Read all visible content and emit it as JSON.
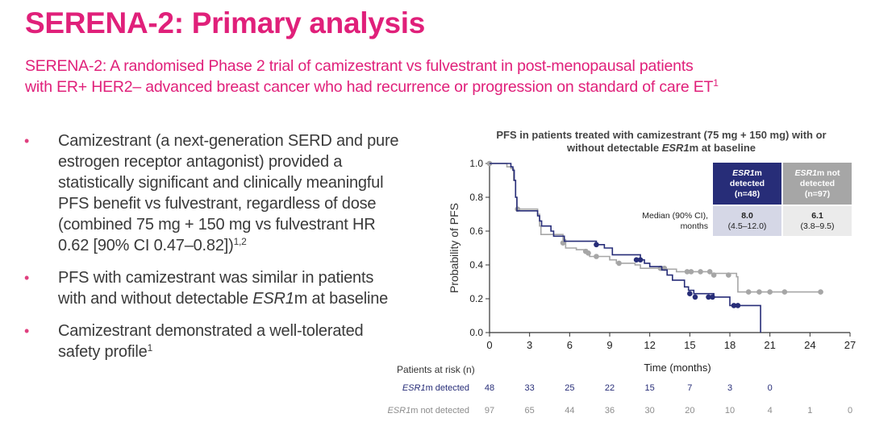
{
  "header": {
    "title": "SERENA-2: Primary analysis",
    "subtitle_line1": "SERENA-2: A randomised Phase 2 trial of camizestrant vs fulvestrant in post-menopausal patients",
    "subtitle_line2": "with ER+ HER2– advanced breast cancer who had recurrence or progression on standard of care ET",
    "subtitle_sup": "1"
  },
  "bullets": [
    {
      "text": "Camizestrant (a next-generation SERD and pure estrogen receptor antagonist) provided a statistically significant and clinically meaningful PFS benefit vs fulvestrant, regardless of dose (combined 75 mg + 150 mg vs fulvestrant HR 0.62 [90% CI 0.47–0.82])",
      "sup": "1,2"
    },
    {
      "text_pre": "PFS with camizestrant was similar in patients with and without detectable ",
      "text_italic": "ESR1",
      "text_post": "m at baseline"
    },
    {
      "text": "Camizestrant demonstrated a well-tolerated safety profile",
      "sup": "1"
    }
  ],
  "legend_table": {
    "median_label_line1": "Median (90% CI),",
    "median_label_line2": "months",
    "groups": [
      {
        "name_italic": "ESR1",
        "name_rest": "m",
        "line2": "detected",
        "n": "(n=48)",
        "median": "8.0",
        "ci": "(4.5–12.0)",
        "color": "#272d78"
      },
      {
        "name_italic": "ESR1",
        "name_rest": "m not",
        "line2": "detected",
        "n": "(n=97)",
        "median": "6.1",
        "ci": "(3.8–9.5)",
        "color": "#a6a6a6"
      }
    ]
  },
  "risk_table": {
    "title": "Patients at risk (n)",
    "rows": [
      {
        "label_italic": "ESR1",
        "label_rest": "m detected",
        "values": [
          "48",
          "33",
          "25",
          "22",
          "15",
          "7",
          "3",
          "0"
        ],
        "color": "#272d78"
      },
      {
        "label_italic": "ESR1",
        "label_rest": "m not detected",
        "values": [
          "97",
          "65",
          "44",
          "36",
          "30",
          "20",
          "10",
          "4",
          "1",
          "0"
        ],
        "color": "#8c8c8c"
      }
    ]
  },
  "chart_data": {
    "type": "line",
    "subtype": "kaplan-meier step",
    "title_line1": "PFS in patients treated with camizestrant (75 mg + 150 mg) with or",
    "title_line2_pre": "without detectable ",
    "title_line2_italic": "ESR1",
    "title_line2_post": "m at baseline",
    "xlabel": "Time (months)",
    "ylabel": "Probability of PFS",
    "xlim": [
      0,
      27
    ],
    "ylim": [
      0,
      1.0
    ],
    "xticks": [
      "0",
      "3",
      "6",
      "9",
      "12",
      "15",
      "18",
      "21",
      "24",
      "27"
    ],
    "yticks": [
      "0.0",
      "0.2",
      "0.4",
      "0.6",
      "0.8",
      "1.0"
    ],
    "grid": false,
    "series": [
      {
        "name": "ESR1m detected",
        "color": "#272d78",
        "steps": [
          [
            0,
            1.0
          ],
          [
            1.6,
            0.98
          ],
          [
            1.75,
            0.96
          ],
          [
            1.85,
            0.9
          ],
          [
            1.95,
            0.8
          ],
          [
            2.05,
            0.72
          ],
          [
            3.6,
            0.69
          ],
          [
            3.75,
            0.66
          ],
          [
            3.9,
            0.63
          ],
          [
            4.6,
            0.6
          ],
          [
            4.8,
            0.57
          ],
          [
            5.6,
            0.54
          ],
          [
            8.0,
            0.52
          ],
          [
            8.6,
            0.5
          ],
          [
            9.2,
            0.46
          ],
          [
            11.3,
            0.43
          ],
          [
            11.6,
            0.41
          ],
          [
            12.0,
            0.39
          ],
          [
            12.9,
            0.37
          ],
          [
            13.3,
            0.34
          ],
          [
            13.7,
            0.31
          ],
          [
            14.6,
            0.27
          ],
          [
            14.9,
            0.25
          ],
          [
            15.3,
            0.23
          ],
          [
            16.8,
            0.21
          ],
          [
            18.0,
            0.16
          ],
          [
            20.3,
            0.16
          ],
          [
            20.3,
            0.0
          ]
        ],
        "censored": [
          [
            8.0,
            0.52
          ],
          [
            11.0,
            0.43
          ],
          [
            11.3,
            0.43
          ],
          [
            15.0,
            0.23
          ],
          [
            15.4,
            0.21
          ],
          [
            16.4,
            0.21
          ],
          [
            16.7,
            0.21
          ],
          [
            18.3,
            0.16
          ],
          [
            18.6,
            0.16
          ]
        ]
      },
      {
        "name": "ESR1m not detected",
        "color": "#a6a6a6",
        "steps": [
          [
            0,
            1.0
          ],
          [
            1.3,
            0.98
          ],
          [
            1.6,
            0.97
          ],
          [
            1.8,
            0.9
          ],
          [
            1.95,
            0.8
          ],
          [
            2.05,
            0.73
          ],
          [
            3.6,
            0.7
          ],
          [
            3.75,
            0.63
          ],
          [
            3.85,
            0.58
          ],
          [
            5.5,
            0.55
          ],
          [
            5.7,
            0.5
          ],
          [
            6.5,
            0.49
          ],
          [
            7.3,
            0.47
          ],
          [
            7.5,
            0.45
          ],
          [
            8.0,
            0.45
          ],
          [
            9.0,
            0.43
          ],
          [
            9.5,
            0.41
          ],
          [
            10.9,
            0.4
          ],
          [
            11.3,
            0.38
          ],
          [
            13.0,
            0.375
          ],
          [
            14.0,
            0.36
          ],
          [
            16.5,
            0.35
          ],
          [
            18.5,
            0.33
          ],
          [
            18.6,
            0.24
          ],
          [
            24.8,
            0.24
          ]
        ],
        "censored": [
          [
            0,
            1.0
          ],
          [
            2.1,
            0.73
          ],
          [
            5.5,
            0.53
          ],
          [
            7.2,
            0.48
          ],
          [
            7.4,
            0.47
          ],
          [
            8.0,
            0.45
          ],
          [
            9.7,
            0.41
          ],
          [
            12.8,
            0.38
          ],
          [
            13.1,
            0.38
          ],
          [
            14.8,
            0.36
          ],
          [
            15.1,
            0.36
          ],
          [
            15.8,
            0.36
          ],
          [
            16.5,
            0.36
          ],
          [
            16.8,
            0.34
          ],
          [
            17.9,
            0.34
          ],
          [
            19.4,
            0.24
          ],
          [
            20.2,
            0.24
          ],
          [
            21.0,
            0.24
          ],
          [
            22.1,
            0.24
          ],
          [
            24.8,
            0.24
          ]
        ]
      }
    ]
  }
}
